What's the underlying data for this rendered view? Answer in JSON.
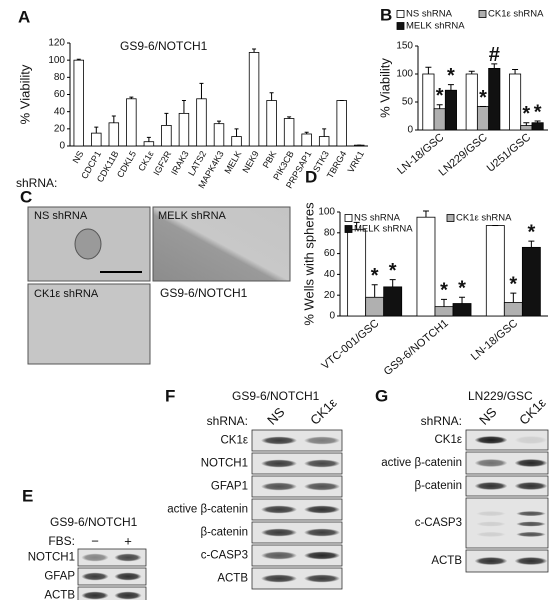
{
  "chart_data": [
    {
      "type": "bar",
      "label": "A",
      "title": "GS9-6/NOTCH1",
      "ylabel": "% Viability",
      "xlabel": "shRNA:",
      "categories": [
        "NS",
        "CDCP1",
        "CDK11B",
        "CDKL5",
        "CK1ε",
        "IGF2R",
        "IRAK3",
        "LATS2",
        "MAPK4K3",
        "MELK",
        "NEK9",
        "PBK",
        "PIK3CB",
        "PRPSAP1",
        "STK3",
        "TBRG4",
        "VRK1"
      ],
      "values": [
        100,
        15,
        27,
        55,
        5,
        24,
        38,
        55,
        26,
        11,
        109,
        53,
        32,
        14,
        11,
        53,
        1
      ],
      "errors": [
        1,
        7,
        8,
        2,
        5,
        14,
        15,
        18,
        3,
        9,
        4,
        9,
        2,
        2,
        9,
        0,
        0
      ],
      "color": "#ffffff",
      "ylim": [
        0,
        120
      ],
      "yticks": [
        0,
        20,
        40,
        60,
        80,
        100,
        120
      ]
    },
    {
      "type": "grouped_bar",
      "label": "B",
      "ylabel": "% Viability",
      "legend": "top",
      "categories": [
        "LN-18/GSC",
        "LN229/GSC",
        "U251/GSC"
      ],
      "series": [
        {
          "name": "NS shRNA",
          "color": "#ffffff",
          "values": [
            100,
            100,
            100
          ],
          "errors": [
            12,
            5,
            8
          ],
          "marks": [
            null,
            null,
            null
          ]
        },
        {
          "name": "CK1ε shRNA",
          "color": "#b0b0b0",
          "values": [
            38,
            42,
            8
          ],
          "errors": [
            7,
            0,
            5
          ],
          "marks": [
            "*",
            "*",
            "*"
          ]
        },
        {
          "name": "MELK shRNA",
          "color": "#111111",
          "values": [
            71,
            110,
            13
          ],
          "errors": [
            10,
            8,
            3
          ],
          "marks": [
            "*",
            "#",
            "*"
          ]
        }
      ],
      "ylim": [
        0,
        150
      ],
      "yticks": [
        0,
        50,
        100,
        150
      ]
    },
    {
      "type": "grouped_bar",
      "label": "D",
      "ylabel": "% Wells with spheres",
      "legend": "top",
      "categories": [
        "VTC-001/GSC",
        "GS9-6/NOTCH1",
        "LN-18/GSC"
      ],
      "series": [
        {
          "name": "NS shRNA",
          "color": "#ffffff",
          "values": [
            83,
            95,
            87
          ],
          "errors": [
            7,
            6,
            0
          ],
          "marks": [
            null,
            null,
            null
          ]
        },
        {
          "name": "CK1ε shRNA",
          "color": "#b0b0b0",
          "values": [
            18,
            9,
            13
          ],
          "errors": [
            12,
            7,
            9
          ],
          "marks": [
            "*",
            "*",
            "*"
          ]
        },
        {
          "name": "MELK shRNA",
          "color": "#111111",
          "values": [
            28,
            12,
            66
          ],
          "errors": [
            7,
            6,
            6
          ],
          "marks": [
            "*",
            "*",
            "*"
          ]
        }
      ],
      "ylim": [
        0,
        100
      ],
      "yticks": [
        0,
        20,
        40,
        60,
        80,
        100
      ]
    }
  ],
  "micrographs": {
    "label": "C",
    "images": [
      "NS shRNA",
      "MELK shRNA",
      "CK1ε shRNA"
    ],
    "caption": "GS9-6/NOTCH1"
  },
  "blots": [
    {
      "label": "E",
      "title": "GS9-6/NOTCH1",
      "condition": "FBS:",
      "lanes": [
        "−",
        "+"
      ],
      "rows": [
        "NOTCH1",
        "GFAP",
        "ACTB"
      ]
    },
    {
      "label": "F",
      "title": "GS9-6/NOTCH1",
      "condition": "shRNA:",
      "lanes": [
        "NS",
        "CK1ε"
      ],
      "rows": [
        "CK1ε",
        "NOTCH1",
        "GFAP1",
        "active β-catenin",
        "β-catenin",
        "c-CASP3",
        "ACTB"
      ]
    },
    {
      "label": "G",
      "title": "LN229/GSC",
      "condition": "shRNA:",
      "lanes": [
        "NS",
        "CK1ε"
      ],
      "rows": [
        "CK1ε",
        "active β-catenin",
        "β-catenin",
        "c-CASP3",
        "ACTB"
      ]
    }
  ]
}
